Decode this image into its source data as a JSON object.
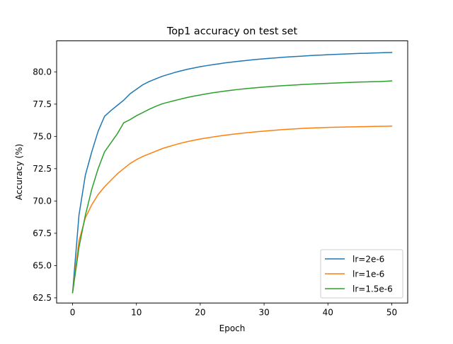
{
  "chart_data": {
    "type": "line",
    "title": "Top1 accuracy on test set",
    "xlabel": "Epoch",
    "ylabel": "Accuracy (%)",
    "xlim": [
      -2.5,
      52.5
    ],
    "ylim": [
      62.1,
      82.4
    ],
    "xticks": [
      0,
      10,
      20,
      30,
      40,
      50
    ],
    "xtick_labels": [
      "0",
      "10",
      "20",
      "30",
      "40",
      "50"
    ],
    "yticks": [
      62.5,
      65.0,
      67.5,
      70.0,
      72.5,
      75.0,
      77.5,
      80.0
    ],
    "ytick_labels": [
      "62.5",
      "65.0",
      "67.5",
      "70.0",
      "72.5",
      "75.0",
      "77.5",
      "80.0"
    ],
    "grid": false,
    "legend_position": "lower right",
    "x": [
      0,
      1,
      2,
      3,
      4,
      5,
      6,
      7,
      8,
      9,
      10,
      11,
      12,
      13,
      14,
      15,
      16,
      17,
      18,
      19,
      20,
      21,
      22,
      23,
      24,
      25,
      26,
      27,
      28,
      29,
      30,
      31,
      32,
      33,
      34,
      35,
      36,
      37,
      38,
      39,
      40,
      41,
      42,
      43,
      44,
      45,
      46,
      47,
      48,
      49,
      50
    ],
    "series": [
      {
        "name": "lr=2e-6",
        "color": "#1f77b4",
        "values": [
          62.9,
          68.9,
          72.0,
          73.8,
          75.4,
          76.55,
          77.0,
          77.4,
          77.8,
          78.3,
          78.65,
          79.0,
          79.25,
          79.45,
          79.65,
          79.8,
          79.95,
          80.08,
          80.2,
          80.3,
          80.4,
          80.48,
          80.56,
          80.63,
          80.7,
          80.76,
          80.82,
          80.87,
          80.92,
          80.97,
          81.01,
          81.05,
          81.09,
          81.13,
          81.16,
          81.19,
          81.22,
          81.25,
          81.28,
          81.3,
          81.33,
          81.35,
          81.37,
          81.39,
          81.41,
          81.43,
          81.44,
          81.46,
          81.47,
          81.49,
          81.5
        ]
      },
      {
        "name": "lr=1e-6",
        "color": "#ff7f0e",
        "values": [
          62.9,
          66.9,
          68.7,
          69.7,
          70.5,
          71.1,
          71.6,
          72.1,
          72.5,
          72.9,
          73.2,
          73.45,
          73.65,
          73.85,
          74.05,
          74.2,
          74.35,
          74.48,
          74.6,
          74.7,
          74.8,
          74.88,
          74.96,
          75.03,
          75.1,
          75.16,
          75.22,
          75.27,
          75.32,
          75.37,
          75.41,
          75.45,
          75.49,
          75.53,
          75.56,
          75.59,
          75.62,
          75.64,
          75.66,
          75.68,
          75.7,
          75.71,
          75.72,
          75.73,
          75.74,
          75.75,
          75.76,
          75.77,
          75.78,
          75.79,
          75.8
        ]
      },
      {
        "name": "lr=1.5e-6",
        "color": "#2ca02c",
        "values": [
          62.9,
          66.4,
          68.9,
          70.9,
          72.5,
          73.8,
          74.5,
          75.2,
          76.05,
          76.3,
          76.6,
          76.85,
          77.1,
          77.32,
          77.52,
          77.65,
          77.78,
          77.9,
          78.02,
          78.12,
          78.21,
          78.3,
          78.38,
          78.45,
          78.52,
          78.58,
          78.64,
          78.69,
          78.74,
          78.78,
          78.82,
          78.86,
          78.9,
          78.93,
          78.96,
          78.99,
          79.02,
          79.04,
          79.07,
          79.09,
          79.11,
          79.13,
          79.15,
          79.17,
          79.19,
          79.21,
          79.22,
          79.24,
          79.25,
          79.27,
          79.3
        ]
      }
    ]
  }
}
